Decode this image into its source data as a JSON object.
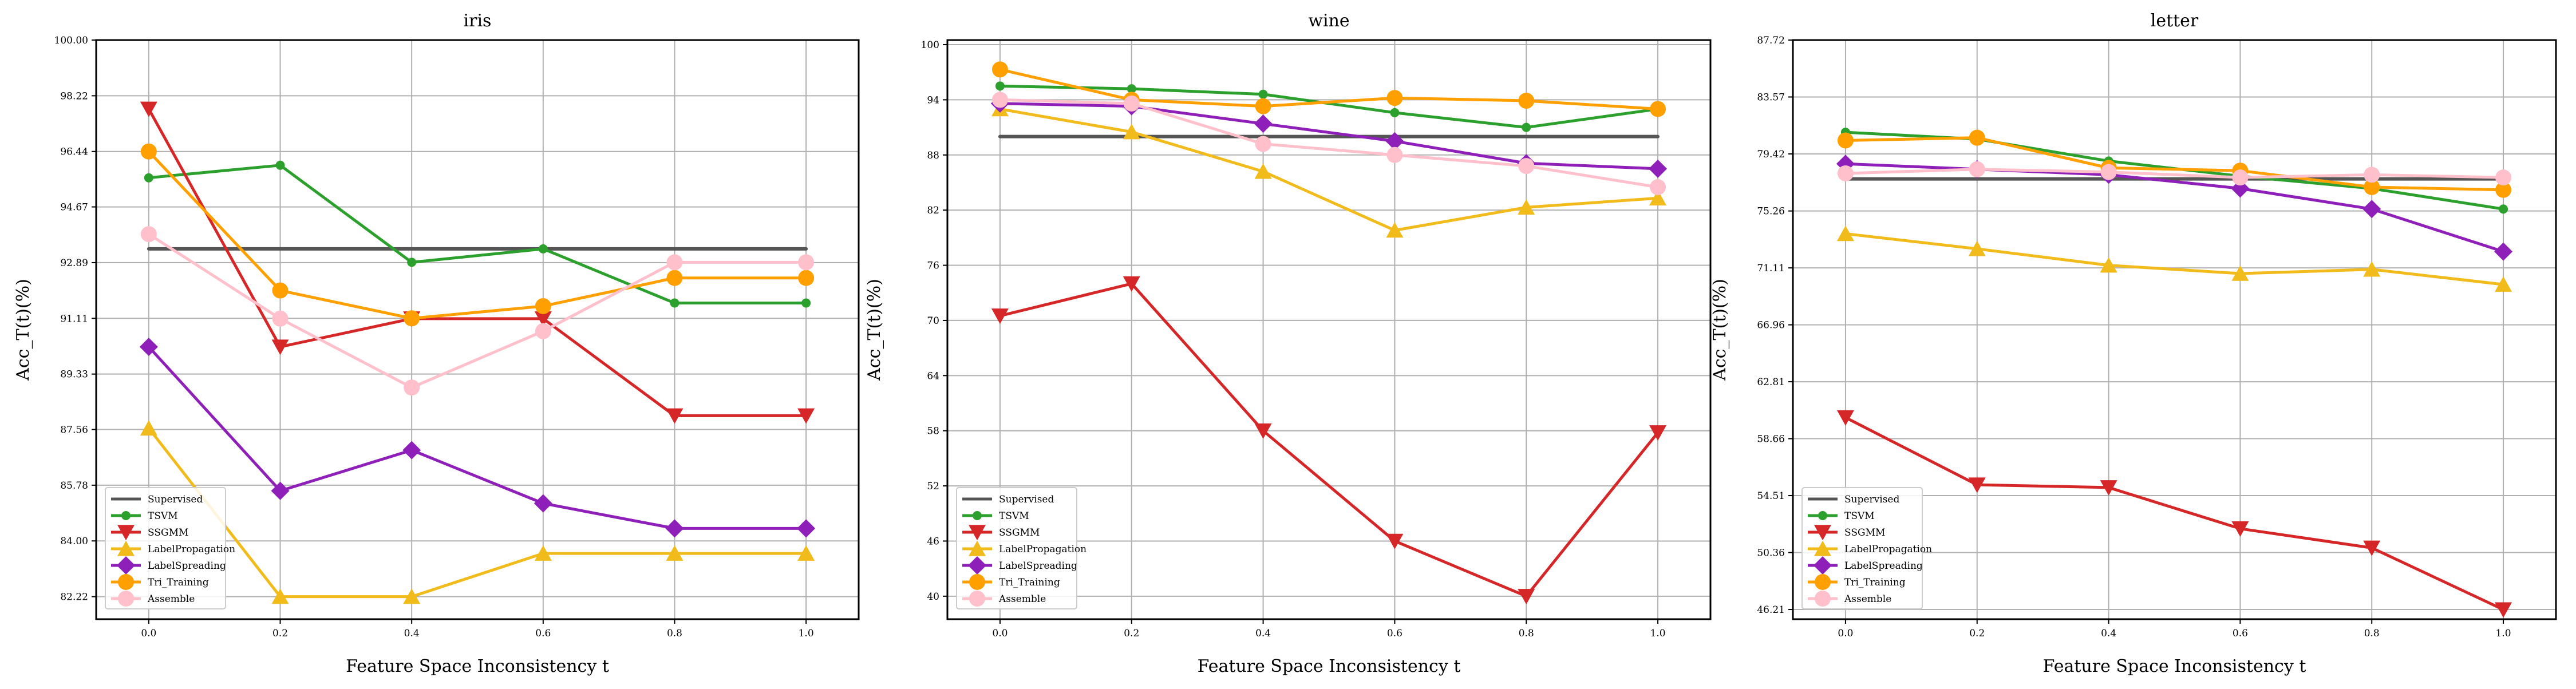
{
  "figure": {
    "xlabel": "Feature Space Inconsistency t",
    "ylabel": "Acc_T(t)(%)"
  },
  "legend_entries": [
    "Supervised",
    "TSVM",
    "SSGMM",
    "LabelPropagation",
    "LabelSpreading",
    "Tri_Training",
    "Assemble"
  ],
  "colors": {
    "Supervised": "#555555",
    "TSVM": "#2ca02c",
    "SSGMM": "#d62728",
    "LabelPropagation": "#f2bb1c",
    "LabelSpreading": "#8e1fb8",
    "Tri_Training": "#ff9f00",
    "Assemble": "#ffc0cb"
  },
  "markers": {
    "Supervised": "none",
    "TSVM": "circle-small",
    "SSGMM": "triangle-down",
    "LabelPropagation": "triangle-up",
    "LabelSpreading": "diamond",
    "Tri_Training": "circle",
    "Assemble": "circle"
  },
  "chart_data": [
    {
      "type": "line",
      "title": "iris",
      "xlabel": "Feature Space Inconsistency t",
      "ylabel": "Acc_T(t)(%)",
      "x": [
        0.0,
        0.2,
        0.4,
        0.6,
        0.8,
        1.0
      ],
      "x_tick_labels": [
        "0.0",
        "0.2",
        "0.4",
        "0.6",
        "0.8",
        "1.0"
      ],
      "xlim": [
        -0.08,
        1.08
      ],
      "ylim": [
        81.5,
        100.0
      ],
      "y_ticks": [
        82.22,
        84.0,
        85.78,
        87.56,
        89.33,
        91.11,
        92.89,
        94.67,
        96.44,
        98.22,
        100.0
      ],
      "y_tick_labels": [
        "82.22",
        "84.00",
        "85.78",
        "87.56",
        "89.33",
        "91.11",
        "92.89",
        "94.67",
        "96.44",
        "98.22",
        "100.00"
      ],
      "grid": true,
      "legend_position": "lower-left",
      "series": [
        {
          "name": "Supervised",
          "values": [
            93.33,
            93.33,
            93.33,
            93.33,
            93.33,
            93.33
          ]
        },
        {
          "name": "TSVM",
          "values": [
            95.6,
            96.0,
            92.9,
            93.33,
            91.6,
            91.6
          ]
        },
        {
          "name": "SSGMM",
          "values": [
            97.8,
            90.2,
            91.1,
            91.1,
            88.0,
            88.0
          ]
        },
        {
          "name": "LabelPropagation",
          "values": [
            87.6,
            82.22,
            82.22,
            83.6,
            83.6,
            83.6
          ]
        },
        {
          "name": "LabelSpreading",
          "values": [
            90.2,
            85.6,
            86.9,
            85.2,
            84.4,
            84.4
          ]
        },
        {
          "name": "Tri_Training",
          "values": [
            96.44,
            92.0,
            91.11,
            91.5,
            92.4,
            92.4
          ]
        },
        {
          "name": "Assemble",
          "values": [
            93.8,
            91.1,
            88.9,
            90.7,
            92.9,
            92.9
          ]
        }
      ]
    },
    {
      "type": "line",
      "title": "wine",
      "xlabel": "Feature Space Inconsistency t",
      "ylabel": "Acc_T(t)(%)",
      "x": [
        0.0,
        0.2,
        0.4,
        0.6,
        0.8,
        1.0
      ],
      "x_tick_labels": [
        "0.0",
        "0.2",
        "0.4",
        "0.6",
        "0.8",
        "1.0"
      ],
      "xlim": [
        -0.08,
        1.08
      ],
      "ylim": [
        37.5,
        100.5
      ],
      "y_ticks": [
        40,
        46,
        52,
        58,
        64,
        70,
        76,
        82,
        88,
        94,
        100
      ],
      "y_tick_labels": [
        "40",
        "46",
        "52",
        "58",
        "64",
        "70",
        "76",
        "82",
        "88",
        "94",
        "100"
      ],
      "grid": true,
      "legend_position": "lower-left",
      "series": [
        {
          "name": "Supervised",
          "values": [
            90.0,
            90.0,
            90.0,
            90.0,
            90.0,
            90.0
          ]
        },
        {
          "name": "TSVM",
          "values": [
            95.5,
            95.2,
            94.6,
            92.6,
            91.0,
            93.0
          ]
        },
        {
          "name": "SSGMM",
          "values": [
            70.5,
            74.0,
            58.0,
            46.0,
            40.0,
            57.8
          ]
        },
        {
          "name": "LabelPropagation",
          "values": [
            93.0,
            90.5,
            86.2,
            79.8,
            82.3,
            83.3
          ]
        },
        {
          "name": "LabelSpreading",
          "values": [
            93.6,
            93.3,
            91.4,
            89.5,
            87.1,
            86.5
          ]
        },
        {
          "name": "Tri_Training",
          "values": [
            97.3,
            94.0,
            93.3,
            94.2,
            93.9,
            93.0
          ]
        },
        {
          "name": "Assemble",
          "values": [
            94.0,
            93.6,
            89.2,
            88.0,
            86.8,
            84.5
          ]
        }
      ]
    },
    {
      "type": "line",
      "title": "letter",
      "xlabel": "Feature Space Inconsistency t",
      "ylabel": "Acc_T(t)(%)",
      "x": [
        0.0,
        0.2,
        0.4,
        0.6,
        0.8,
        1.0
      ],
      "x_tick_labels": [
        "0.0",
        "0.2",
        "0.4",
        "0.6",
        "0.8",
        "1.0"
      ],
      "xlim": [
        -0.08,
        1.08
      ],
      "ylim": [
        45.5,
        87.72
      ],
      "y_ticks": [
        46.21,
        50.36,
        54.51,
        58.66,
        62.81,
        66.96,
        71.11,
        75.26,
        79.42,
        83.57,
        87.72
      ],
      "y_tick_labels": [
        "46.21",
        "50.36",
        "54.51",
        "58.66",
        "62.81",
        "66.96",
        "71.11",
        "75.26",
        "79.42",
        "83.57",
        "87.72"
      ],
      "grid": true,
      "legend_position": "lower-left",
      "series": [
        {
          "name": "Supervised",
          "values": [
            77.6,
            77.6,
            77.6,
            77.6,
            77.6,
            77.6
          ]
        },
        {
          "name": "TSVM",
          "values": [
            81.0,
            80.5,
            78.9,
            77.8,
            76.9,
            75.4
          ]
        },
        {
          "name": "SSGMM",
          "values": [
            60.2,
            55.3,
            55.1,
            52.1,
            50.7,
            46.2
          ]
        },
        {
          "name": "LabelPropagation",
          "values": [
            73.6,
            72.5,
            71.3,
            70.7,
            71.0,
            69.9
          ]
        },
        {
          "name": "LabelSpreading",
          "values": [
            78.7,
            78.3,
            77.9,
            76.9,
            75.4,
            72.3
          ]
        },
        {
          "name": "Tri_Training",
          "values": [
            80.4,
            80.6,
            78.4,
            78.2,
            77.0,
            76.8
          ]
        },
        {
          "name": "Assemble",
          "values": [
            78.0,
            78.3,
            78.1,
            77.7,
            77.9,
            77.7
          ]
        }
      ]
    }
  ]
}
